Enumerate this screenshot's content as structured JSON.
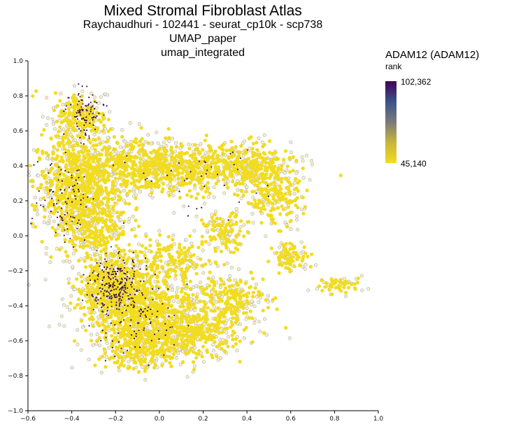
{
  "chart_data": {
    "type": "scatter",
    "title": "Mixed Stromal Fibroblast Atlas",
    "subtitle_lines": [
      "Raychaudhuri - 102441 - seurat_cp10k - scp738",
      "UMAP_paper",
      "umap_integrated"
    ],
    "xlim": [
      -0.6,
      1.0
    ],
    "ylim": [
      -1.0,
      1.0
    ],
    "x_ticks": [
      "−0.6",
      "−0.4",
      "−0.2",
      "0.0",
      "0.2",
      "0.4",
      "0.6",
      "0.8",
      "1.0"
    ],
    "y_ticks": [
      "1.0",
      "0.8",
      "0.6",
      "0.4",
      "0.2",
      "0.0",
      "−0.2",
      "−0.4",
      "−0.6",
      "−0.8",
      "−1.0"
    ],
    "grid": false,
    "legend_position": "right",
    "color_legend": {
      "title": "ADAM12 (ADAM12)",
      "subtitle": "rank",
      "max_label": "102,362",
      "min_label": "45,140",
      "max": 102362,
      "min": 45140,
      "colors": [
        "#440154",
        "#3b528b",
        "#7a7a7a",
        "#c9b43a",
        "#f2dc20"
      ]
    },
    "point_colors": {
      "fill_low": "#f2dc20",
      "outline": "#a8a8d0",
      "high": "#3a0d3e"
    },
    "clusters": [
      {
        "cx": -0.36,
        "cy": 0.68,
        "sx": 0.06,
        "sy": 0.07,
        "n": 160
      },
      {
        "cx": -0.4,
        "cy": 0.3,
        "sx": 0.09,
        "sy": 0.14,
        "n": 420
      },
      {
        "cx": -0.3,
        "cy": 0.08,
        "sx": 0.08,
        "sy": 0.1,
        "n": 260
      },
      {
        "cx": -0.18,
        "cy": 0.4,
        "sx": 0.12,
        "sy": 0.08,
        "n": 300
      },
      {
        "cx": 0.1,
        "cy": 0.38,
        "sx": 0.14,
        "sy": 0.07,
        "n": 340
      },
      {
        "cx": 0.4,
        "cy": 0.4,
        "sx": 0.1,
        "sy": 0.06,
        "n": 240
      },
      {
        "cx": 0.52,
        "cy": 0.22,
        "sx": 0.06,
        "sy": 0.08,
        "n": 150
      },
      {
        "cx": 0.3,
        "cy": 0.02,
        "sx": 0.05,
        "sy": 0.05,
        "n": 90
      },
      {
        "cx": 0.6,
        "cy": -0.12,
        "sx": 0.04,
        "sy": 0.04,
        "n": 70
      },
      {
        "cx": 0.82,
        "cy": -0.28,
        "sx": 0.05,
        "sy": 0.02,
        "n": 40
      },
      {
        "cx": -0.22,
        "cy": -0.3,
        "sx": 0.08,
        "sy": 0.1,
        "n": 420
      },
      {
        "cx": -0.05,
        "cy": -0.4,
        "sx": 0.12,
        "sy": 0.08,
        "n": 360
      },
      {
        "cx": 0.15,
        "cy": -0.55,
        "sx": 0.12,
        "sy": 0.07,
        "n": 300
      },
      {
        "cx": -0.08,
        "cy": -0.62,
        "sx": 0.1,
        "sy": 0.07,
        "n": 300
      },
      {
        "cx": 0.05,
        "cy": -0.15,
        "sx": 0.1,
        "sy": 0.06,
        "n": 160
      },
      {
        "cx": 0.32,
        "cy": -0.35,
        "sx": 0.08,
        "sy": 0.06,
        "n": 150
      }
    ],
    "highlight_clusters": [
      {
        "cx": -0.2,
        "cy": -0.28,
        "sx": 0.06,
        "sy": 0.08,
        "n": 240
      },
      {
        "cx": -0.34,
        "cy": 0.7,
        "sx": 0.04,
        "sy": 0.06,
        "n": 90
      },
      {
        "cx": -0.42,
        "cy": 0.2,
        "sx": 0.06,
        "sy": 0.14,
        "n": 90
      },
      {
        "cx": -0.1,
        "cy": -0.5,
        "sx": 0.12,
        "sy": 0.1,
        "n": 80
      },
      {
        "cx": 0.1,
        "cy": 0.3,
        "sx": 0.2,
        "sy": 0.1,
        "n": 40
      }
    ]
  }
}
